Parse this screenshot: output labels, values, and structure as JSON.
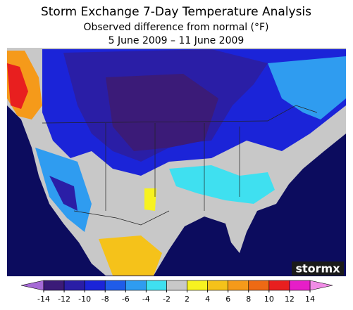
{
  "title": "Storm Exchange 7-Day Temperature Analysis",
  "subtitle": "Observed difference from normal (°F)",
  "date_range": "5 June 2009 – 11 June 2009",
  "logo": "stormx",
  "colorbar": {
    "ticks": [
      -14,
      -12,
      -10,
      -8,
      -6,
      -4,
      -2,
      2,
      4,
      6,
      8,
      10,
      12,
      14
    ],
    "low_color": "#a66ad6",
    "colors": [
      "#3b1b78",
      "#2a1ea6",
      "#1b24d8",
      "#1f5ce8",
      "#2f9cf0",
      "#3fe0f0",
      "#c8c8c8",
      "#f7f220",
      "#f5c21a",
      "#f59a1a",
      "#ee6a14",
      "#e81f1f",
      "#e61ec8"
    ],
    "high_color": "#f08ce6"
  }
}
